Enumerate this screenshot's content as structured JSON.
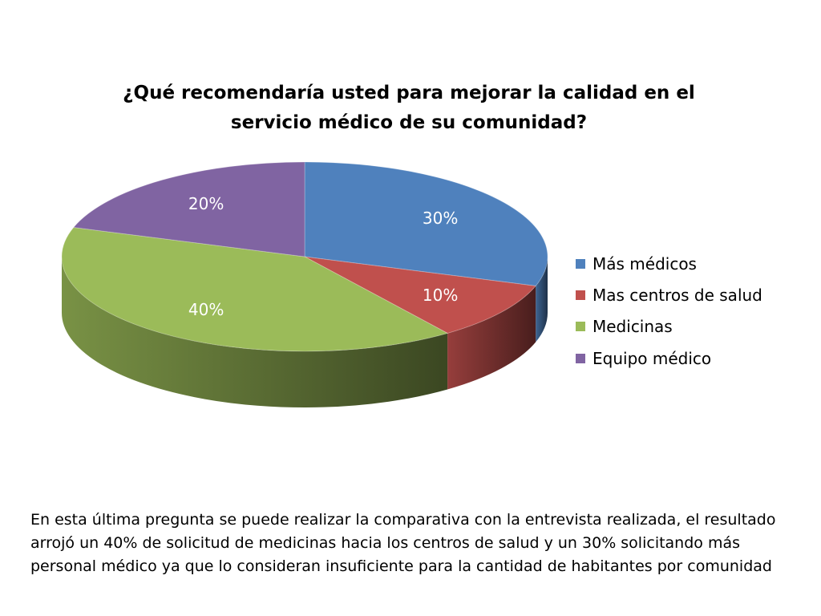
{
  "chart_data": {
    "type": "pie",
    "title": "¿Qué recomendaría usted para mejorar la calidad en el servicio médico de su comunidad?",
    "title_lines": [
      "¿Qué recomendaría usted para mejorar la calidad en el",
      "servicio médico de su comunidad?"
    ],
    "style": "3d",
    "legend_position": "right",
    "slices": [
      {
        "label": "Más médicos",
        "value": 30,
        "data_label": "30%",
        "color": "#4F81BD"
      },
      {
        "label": "Mas centros de salud",
        "value": 10,
        "data_label": "10%",
        "color": "#C0504D"
      },
      {
        "label": "Medicinas",
        "value": 40,
        "data_label": "40%",
        "color": "#9BBB59"
      },
      {
        "label": "Equipo médico",
        "value": 20,
        "data_label": "20%",
        "color": "#8064A2"
      }
    ]
  },
  "description": "En esta última pregunta se puede realizar la comparativa con la entrevista realizada, el resultado arrojó un 40% de solicitud de medicinas hacia los centros de salud y un 30% solicitando más personal médico ya que lo consideran insuficiente para la cantidad de habitantes por comunidad"
}
